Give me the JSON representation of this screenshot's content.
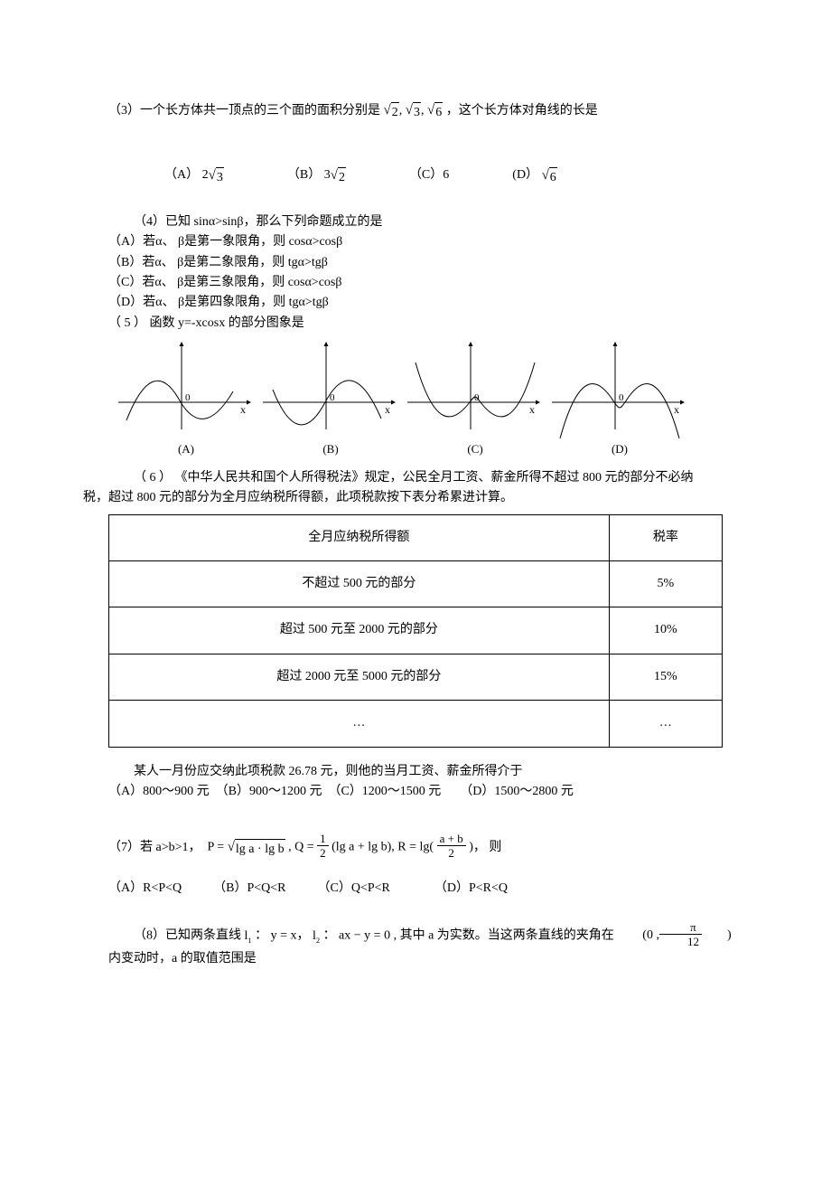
{
  "q3": {
    "stem_a": "（3）一个长方体共一顶点的三个面的面积分别是",
    "stem_b": "，这个长方体对角线的长是",
    "surds": [
      "2",
      "3",
      "6"
    ],
    "options": {
      "A_pre": "（A）",
      "A_coef": "2",
      "A_rad": "3",
      "B_pre": "（B）",
      "B_coef": "3",
      "B_rad": "2",
      "C_pre": "（C）",
      "C_val": "6",
      "D_pre": "(D）",
      "D_rad": "6"
    }
  },
  "q4": {
    "stem": "（4）已知 sinα>sinβ，那么下列命题成立的是",
    "A": "（A）若α、 β是第一象限角，则 cosα>cosβ",
    "B": "（B）若α、 β是第二象限角，则 tgα>tgβ",
    "C": "（C）若α、 β是第三象限角，则 cosα>cosβ",
    "D": "（D）若α、 β是第四象限角，则 tgα>tgβ"
  },
  "q5": {
    "stem": "（ 5 ） 函数 y=-xcosx 的部分图象是",
    "labels": {
      "A": "(A)",
      "B": "(B)",
      "C": "(C)",
      "D": "(D)"
    },
    "figure": {
      "width": 160,
      "height": 110,
      "axis_color": "#000000",
      "stroke": "#000000",
      "x_label": "x",
      "o_label": "0",
      "o_font": 11
    }
  },
  "q6": {
    "stem": "（ 6 ） 《中华人民共和国个人所得税法》规定，公民全月工资、薪金所得不超过 800 元的部分不必纳税，超过 800 元的部分为全月应纳税所得额，此项税款按下表分希累进计算。",
    "table": {
      "header": [
        "全月应纳税所得额",
        "税率"
      ],
      "rows": [
        [
          "不超过 500 元的部分",
          "5%"
        ],
        [
          "超过 500 元至 2000 元的部分",
          "10%"
        ],
        [
          "超过 2000 元至 5000 元的部分",
          "15%"
        ],
        [
          "…",
          "…"
        ]
      ],
      "col_widths": [
        "50%",
        "50%"
      ]
    },
    "tail": "某人一月份应交纳此项税款 26.78 元，则他的当月工资、薪金所得介于",
    "options": "（A）800～900 元　（B）900～1200 元　（C）1200～1500 元　　（D）1500～2800 元"
  },
  "q7": {
    "stem_pre": "（7）若 a>b>1，",
    "formula_P_pre": "P = ",
    "formula_P_rad": "lg a · lg b",
    "formula_Q_pre": " , Q = ",
    "formula_Q_frac_num": "1",
    "formula_Q_frac_den": "2",
    "formula_Q_rest": " (lg a + lg b), R = lg(",
    "formula_R_frac_num": "a + b",
    "formula_R_frac_den": "2",
    "formula_R_close": ")",
    "stem_post": " ，  则",
    "options": "（A）R<P<Q　　　（B）P<Q<R　　　（C）Q<P<R　　　　（D）P<R<Q"
  },
  "q8": {
    "stem_a": "（8）已知两条直线",
    "l1_pre": "l",
    "l1_sub": "1",
    "l1_eq": "：  y = x，  ",
    "l2_pre": "l",
    "l2_sub": "2",
    "l2_eq": "：  ax − y = 0",
    "stem_b": " , 其中 a 为实数。当这两条直线的夹角在 ",
    "interval_open": "(0 ,",
    "interval_frac_num": "π",
    "interval_frac_den": "12",
    "interval_close": ")",
    "stem_c": " 内变动时，a 的取值范围是"
  }
}
